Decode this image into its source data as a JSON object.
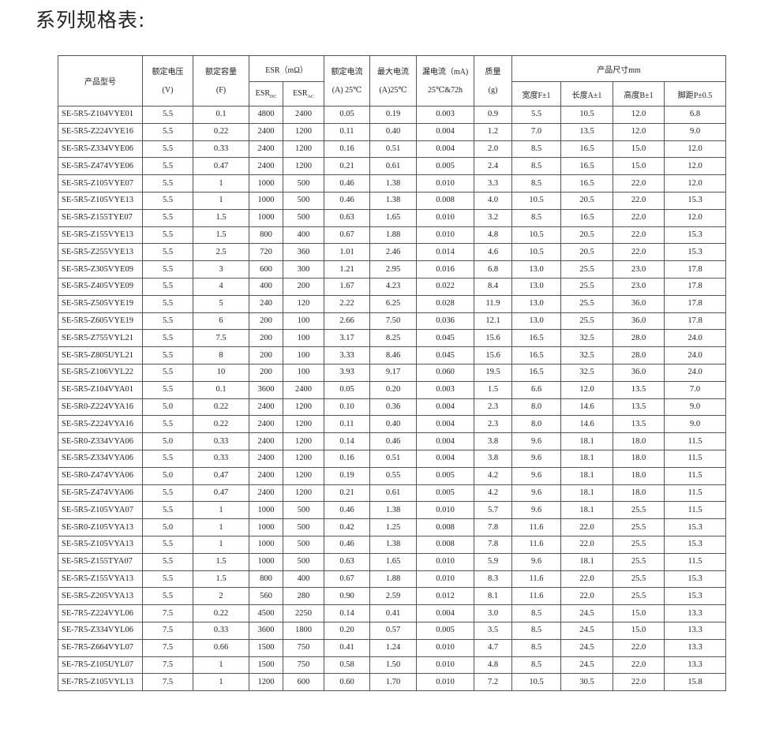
{
  "title": "系列规格表:",
  "table": {
    "header": {
      "model": "产品型号",
      "voltage": [
        "额定电压",
        "(V)"
      ],
      "capacity": [
        "额定容量",
        "(F)"
      ],
      "esr": "ESR（mΩ）",
      "esr_dc": [
        "ESR",
        "DC"
      ],
      "esr_ac": [
        "ESR",
        "AC"
      ],
      "rated_current": [
        "额定电流",
        "(A) 25℃"
      ],
      "max_current": [
        "最大电流",
        "(A)25℃"
      ],
      "leakage": [
        "漏电流（mA)",
        "25℃&72h"
      ],
      "mass": [
        "质量",
        "(g)"
      ],
      "size": "产品尺寸mm",
      "size_cols": [
        "宽度F±1",
        "长度A±1",
        "高度B±1",
        "脚距P±0.5"
      ]
    },
    "rows": [
      [
        "SE-5R5-Z104VYE01",
        "5.5",
        "0.1",
        "4800",
        "2400",
        "0.05",
        "0.19",
        "0.003",
        "0.9",
        "5.5",
        "10.5",
        "12.0",
        "6.8"
      ],
      [
        "SE-5R5-Z224VYE16",
        "5.5",
        "0.22",
        "2400",
        "1200",
        "0.11",
        "0.40",
        "0.004",
        "1.2",
        "7.0",
        "13.5",
        "12.0",
        "9.0"
      ],
      [
        "SE-5R5-Z334VYE06",
        "5.5",
        "0.33",
        "2400",
        "1200",
        "0.16",
        "0.51",
        "0.004",
        "2.0",
        "8.5",
        "16.5",
        "15.0",
        "12.0"
      ],
      [
        "SE-5R5-Z474VYE06",
        "5.5",
        "0.47",
        "2400",
        "1200",
        "0.21",
        "0.61",
        "0.005",
        "2.4",
        "8.5",
        "16.5",
        "15.0",
        "12.0"
      ],
      [
        "SE-5R5-Z105VYE07",
        "5.5",
        "1",
        "1000",
        "500",
        "0.46",
        "1.38",
        "0.010",
        "3.3",
        "8.5",
        "16.5",
        "22.0",
        "12.0"
      ],
      [
        "SE-5R5-Z105VYE13",
        "5.5",
        "1",
        "1000",
        "500",
        "0.46",
        "1.38",
        "0.008",
        "4.0",
        "10.5",
        "20.5",
        "22.0",
        "15.3"
      ],
      [
        "SE-5R5-Z155TYE07",
        "5.5",
        "1.5",
        "1000",
        "500",
        "0.63",
        "1.65",
        "0.010",
        "3.2",
        "8.5",
        "16.5",
        "22.0",
        "12.0"
      ],
      [
        "SE-5R5-Z155VYE13",
        "5.5",
        "1.5",
        "800",
        "400",
        "0.67",
        "1.88",
        "0.010",
        "4.8",
        "10.5",
        "20.5",
        "22.0",
        "15.3"
      ],
      [
        "SE-5R5-Z255VYE13",
        "5.5",
        "2.5",
        "720",
        "360",
        "1.01",
        "2.46",
        "0.014",
        "4.6",
        "10.5",
        "20.5",
        "22.0",
        "15.3"
      ],
      [
        "SE-5R5-Z305VYE09",
        "5.5",
        "3",
        "600",
        "300",
        "1.21",
        "2.95",
        "0.016",
        "6.8",
        "13.0",
        "25.5",
        "23.0",
        "17.8"
      ],
      [
        "SE-5R5-Z405VYE09",
        "5.5",
        "4",
        "400",
        "200",
        "1.67",
        "4.23",
        "0.022",
        "8.4",
        "13.0",
        "25.5",
        "23.0",
        "17.8"
      ],
      [
        "SE-5R5-Z505VYE19",
        "5.5",
        "5",
        "240",
        "120",
        "2.22",
        "6.25",
        "0.028",
        "11.9",
        "13.0",
        "25.5",
        "36.0",
        "17.8"
      ],
      [
        "SE-5R5-Z605VYE19",
        "5.5",
        "6",
        "200",
        "100",
        "2.66",
        "7.50",
        "0.036",
        "12.1",
        "13.0",
        "25.5",
        "36.0",
        "17.8"
      ],
      [
        "SE-5R5-Z755VYL21",
        "5.5",
        "7.5",
        "200",
        "100",
        "3.17",
        "8.25",
        "0.045",
        "15.6",
        "16.5",
        "32.5",
        "28.0",
        "24.0"
      ],
      [
        "SE-5R5-Z805UYL21",
        "5.5",
        "8",
        "200",
        "100",
        "3.33",
        "8.46",
        "0.045",
        "15.6",
        "16.5",
        "32.5",
        "28.0",
        "24.0"
      ],
      [
        "SE-5R5-Z106VYL22",
        "5.5",
        "10",
        "200",
        "100",
        "3.93",
        "9.17",
        "0.060",
        "19.5",
        "16.5",
        "32.5",
        "36.0",
        "24.0"
      ],
      [
        "SE-5R5-Z104VYA01",
        "5.5",
        "0.1",
        "3600",
        "2400",
        "0.05",
        "0.20",
        "0.003",
        "1.5",
        "6.6",
        "12.0",
        "13.5",
        "7.0"
      ],
      [
        "SE-5R0-Z224VYA16",
        "5.0",
        "0.22",
        "2400",
        "1200",
        "0.10",
        "0.36",
        "0.004",
        "2.3",
        "8.0",
        "14.6",
        "13.5",
        "9.0"
      ],
      [
        "SE-5R5-Z224VYA16",
        "5.5",
        "0.22",
        "2400",
        "1200",
        "0.11",
        "0.40",
        "0.004",
        "2.3",
        "8.0",
        "14.6",
        "13.5",
        "9.0"
      ],
      [
        "SE-5R0-Z334VYA06",
        "5.0",
        "0.33",
        "2400",
        "1200",
        "0.14",
        "0.46",
        "0.004",
        "3.8",
        "9.6",
        "18.1",
        "18.0",
        "11.5"
      ],
      [
        "SE-5R5-Z334VYA06",
        "5.5",
        "0.33",
        "2400",
        "1200",
        "0.16",
        "0.51",
        "0.004",
        "3.8",
        "9.6",
        "18.1",
        "18.0",
        "11.5"
      ],
      [
        "SE-5R0-Z474VYA06",
        "5.0",
        "0.47",
        "2400",
        "1200",
        "0.19",
        "0.55",
        "0.005",
        "4.2",
        "9.6",
        "18.1",
        "18.0",
        "11.5"
      ],
      [
        "SE-5R5-Z474VYA06",
        "5.5",
        "0.47",
        "2400",
        "1200",
        "0.21",
        "0.61",
        "0.005",
        "4.2",
        "9.6",
        "18.1",
        "18.0",
        "11.5"
      ],
      [
        "SE-5R5-Z105VYA07",
        "5.5",
        "1",
        "1000",
        "500",
        "0.46",
        "1.38",
        "0.010",
        "5.7",
        "9.6",
        "18.1",
        "25.5",
        "11.5"
      ],
      [
        "SE-5R0-Z105VYA13",
        "5.0",
        "1",
        "1000",
        "500",
        "0.42",
        "1.25",
        "0.008",
        "7.8",
        "11.6",
        "22.0",
        "25.5",
        "15.3"
      ],
      [
        "SE-5R5-Z105VYA13",
        "5.5",
        "1",
        "1000",
        "500",
        "0.46",
        "1.38",
        "0.008",
        "7.8",
        "11.6",
        "22.0",
        "25.5",
        "15.3"
      ],
      [
        "SE-5R5-Z155TYA07",
        "5.5",
        "1.5",
        "1000",
        "500",
        "0.63",
        "1.65",
        "0.010",
        "5.9",
        "9.6",
        "18.1",
        "25.5",
        "11.5"
      ],
      [
        "SE-5R5-Z155VYA13",
        "5.5",
        "1.5",
        "800",
        "400",
        "0.67",
        "1.88",
        "0.010",
        "8.3",
        "11.6",
        "22.0",
        "25.5",
        "15.3"
      ],
      [
        "SE-5R5-Z205VYA13",
        "5.5",
        "2",
        "560",
        "280",
        "0.90",
        "2.59",
        "0.012",
        "8.1",
        "11.6",
        "22.0",
        "25.5",
        "15.3"
      ],
      [
        "SE-7R5-Z224VYL06",
        "7.5",
        "0.22",
        "4500",
        "2250",
        "0.14",
        "0.41",
        "0.004",
        "3.0",
        "8.5",
        "24.5",
        "15.0",
        "13.3"
      ],
      [
        "SE-7R5-Z334VYL06",
        "7.5",
        "0.33",
        "3600",
        "1800",
        "0.20",
        "0.57",
        "0.005",
        "3.5",
        "8.5",
        "24.5",
        "15.0",
        "13.3"
      ],
      [
        "SE-7R5-Z664VYL07",
        "7.5",
        "0.66",
        "1500",
        "750",
        "0.41",
        "1.24",
        "0.010",
        "4.7",
        "8.5",
        "24.5",
        "22.0",
        "13.3"
      ],
      [
        "SE-7R5-Z105UYL07",
        "7.5",
        "1",
        "1500",
        "750",
        "0.58",
        "1.50",
        "0.010",
        "4.8",
        "8.5",
        "24.5",
        "22.0",
        "13.3"
      ],
      [
        "SE-7R5-Z105VYL13",
        "7.5",
        "1",
        "1200",
        "600",
        "0.60",
        "1.70",
        "0.010",
        "7.2",
        "10.5",
        "30.5",
        "22.0",
        "15.8"
      ]
    ]
  }
}
